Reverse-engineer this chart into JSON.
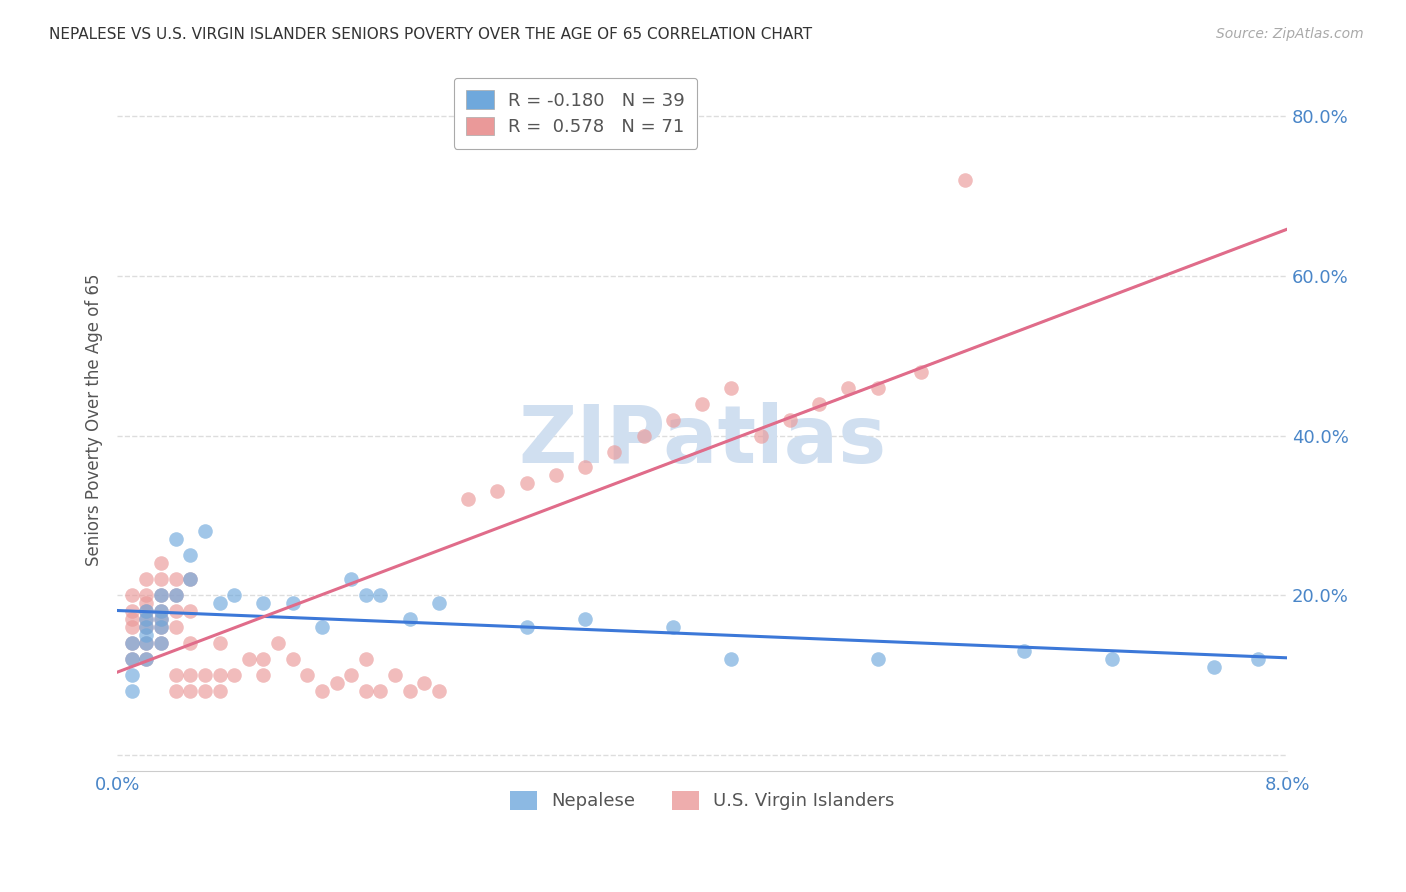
{
  "title": "NEPALESE VS U.S. VIRGIN ISLANDER SENIORS POVERTY OVER THE AGE OF 65 CORRELATION CHART",
  "source": "Source: ZipAtlas.com",
  "ylabel": "Seniors Poverty Over the Age of 65",
  "xlim": [
    0.0,
    0.08
  ],
  "ylim": [
    -0.02,
    0.86
  ],
  "yticks": [
    0.0,
    0.2,
    0.4,
    0.6,
    0.8
  ],
  "ytick_labels": [
    "",
    "20.0%",
    "40.0%",
    "60.0%",
    "80.0%"
  ],
  "xticks": [
    0.0,
    0.01,
    0.02,
    0.03,
    0.04,
    0.05,
    0.06,
    0.07,
    0.08
  ],
  "xtick_labels": [
    "0.0%",
    "",
    "",
    "",
    "",
    "",
    "",
    "",
    "8.0%"
  ],
  "nepalese_color": "#6fa8dc",
  "virgin_islander_color": "#ea9999",
  "nepalese_R": -0.18,
  "nepalese_N": 39,
  "virgin_islander_R": 0.578,
  "virgin_islander_N": 71,
  "nepalese_x": [
    0.001,
    0.001,
    0.001,
    0.001,
    0.002,
    0.002,
    0.002,
    0.002,
    0.002,
    0.002,
    0.003,
    0.003,
    0.003,
    0.003,
    0.003,
    0.004,
    0.004,
    0.005,
    0.005,
    0.006,
    0.007,
    0.008,
    0.01,
    0.012,
    0.014,
    0.016,
    0.017,
    0.018,
    0.02,
    0.022,
    0.028,
    0.032,
    0.038,
    0.042,
    0.052,
    0.062,
    0.068,
    0.075,
    0.078
  ],
  "nepalese_y": [
    0.08,
    0.1,
    0.12,
    0.14,
    0.12,
    0.14,
    0.15,
    0.16,
    0.17,
    0.18,
    0.14,
    0.16,
    0.17,
    0.18,
    0.2,
    0.2,
    0.27,
    0.22,
    0.25,
    0.28,
    0.19,
    0.2,
    0.19,
    0.19,
    0.16,
    0.22,
    0.2,
    0.2,
    0.17,
    0.19,
    0.16,
    0.17,
    0.16,
    0.12,
    0.12,
    0.13,
    0.12,
    0.11,
    0.12
  ],
  "virgin_islander_x": [
    0.001,
    0.001,
    0.001,
    0.001,
    0.001,
    0.001,
    0.002,
    0.002,
    0.002,
    0.002,
    0.002,
    0.002,
    0.002,
    0.002,
    0.003,
    0.003,
    0.003,
    0.003,
    0.003,
    0.003,
    0.003,
    0.004,
    0.004,
    0.004,
    0.004,
    0.004,
    0.004,
    0.005,
    0.005,
    0.005,
    0.005,
    0.005,
    0.006,
    0.006,
    0.007,
    0.007,
    0.007,
    0.008,
    0.009,
    0.01,
    0.01,
    0.011,
    0.012,
    0.013,
    0.014,
    0.015,
    0.016,
    0.017,
    0.017,
    0.018,
    0.019,
    0.02,
    0.021,
    0.022,
    0.024,
    0.026,
    0.028,
    0.03,
    0.032,
    0.034,
    0.036,
    0.038,
    0.04,
    0.042,
    0.044,
    0.046,
    0.048,
    0.05,
    0.052,
    0.055,
    0.058
  ],
  "virgin_islander_y": [
    0.12,
    0.14,
    0.16,
    0.17,
    0.18,
    0.2,
    0.12,
    0.14,
    0.16,
    0.17,
    0.18,
    0.19,
    0.2,
    0.22,
    0.14,
    0.16,
    0.17,
    0.18,
    0.2,
    0.22,
    0.24,
    0.08,
    0.1,
    0.16,
    0.18,
    0.2,
    0.22,
    0.08,
    0.1,
    0.14,
    0.18,
    0.22,
    0.08,
    0.1,
    0.08,
    0.1,
    0.14,
    0.1,
    0.12,
    0.1,
    0.12,
    0.14,
    0.12,
    0.1,
    0.08,
    0.09,
    0.1,
    0.08,
    0.12,
    0.08,
    0.1,
    0.08,
    0.09,
    0.08,
    0.32,
    0.33,
    0.34,
    0.35,
    0.36,
    0.38,
    0.4,
    0.42,
    0.44,
    0.46,
    0.4,
    0.42,
    0.44,
    0.46,
    0.46,
    0.48,
    0.72
  ],
  "background_color": "#ffffff",
  "grid_color": "#dddddd",
  "axis_color": "#4a86c8",
  "watermark_text": "ZIPatlas",
  "watermark_color": "#d0dff0",
  "legend_nepalese_label": "Nepalese",
  "legend_vi_label": "U.S. Virgin Islanders"
}
